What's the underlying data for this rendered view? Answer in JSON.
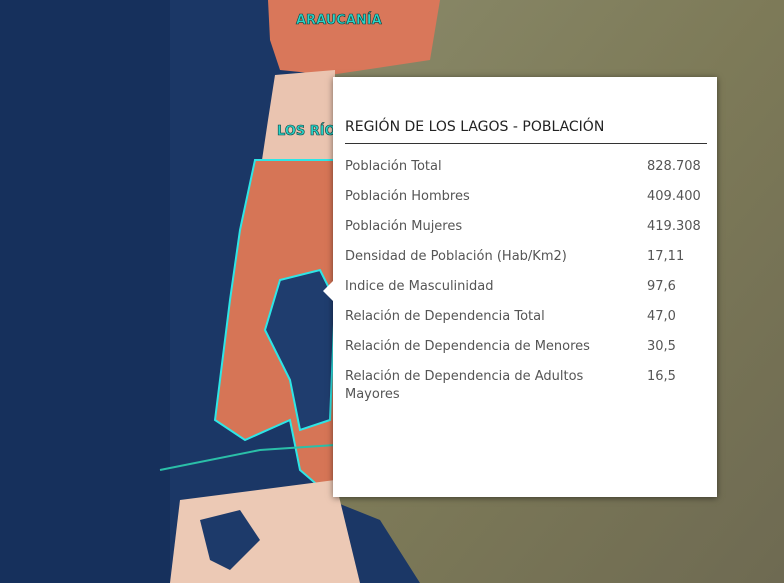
{
  "map": {
    "labels": [
      "ARAUCANÍA",
      "LOS RÍOS"
    ]
  },
  "popup": {
    "title": "REGIÓN DE LOS LAGOS - POBLACIÓN",
    "rows": [
      [
        "Población Total",
        "828.708"
      ],
      [
        "Población Hombres",
        "409.400"
      ],
      [
        "Población Mujeres",
        "419.308"
      ],
      [
        "Densidad de Población (Hab/Km2)",
        "17,11"
      ],
      [
        "Indice de Masculinidad",
        "97,6"
      ],
      [
        "Relación de Dependencia Total",
        "47,0"
      ],
      [
        "Relación de Dependencia de Menores",
        "30,5"
      ],
      [
        "Relación de Dependencia de Adultos Mayores",
        "16,5"
      ]
    ]
  }
}
